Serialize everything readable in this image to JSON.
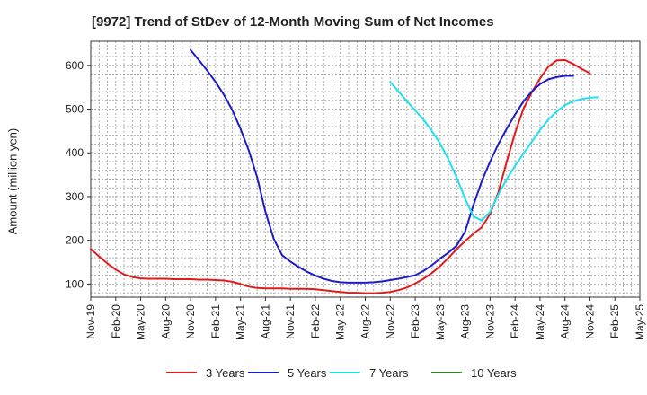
{
  "chart_data": {
    "type": "line",
    "title": "[9972]  Trend of StDev of 12-Month Moving Sum of Net Incomes",
    "ylabel": "Amount (million yen)",
    "xlabel": "",
    "ylim": [
      70,
      655
    ],
    "yticks": [
      100,
      200,
      300,
      400,
      500,
      600
    ],
    "x_categories": [
      "Nov-19",
      "Feb-20",
      "May-20",
      "Aug-20",
      "Nov-20",
      "Feb-21",
      "May-21",
      "Aug-21",
      "Nov-21",
      "Feb-22",
      "May-22",
      "Aug-22",
      "Nov-22",
      "Feb-23",
      "May-23",
      "Aug-23",
      "Nov-23",
      "Feb-24",
      "May-24",
      "Aug-24",
      "Nov-24",
      "Feb-25",
      "May-25"
    ],
    "grid": true,
    "legend_position": "bottom",
    "series": [
      {
        "name": "3 Years",
        "color": "#e31a1c",
        "start_index": 0,
        "values": [
          180,
          163,
          147,
          133,
          122,
          116,
          113,
          112,
          112,
          112,
          111,
          111,
          111,
          110,
          110,
          109,
          108,
          105,
          100,
          94,
          91,
          90,
          90,
          90,
          89,
          89,
          89,
          88,
          86,
          84,
          82,
          80,
          80,
          79,
          79,
          80,
          82,
          86,
          92,
          101,
          112,
          125,
          141,
          160,
          180,
          198,
          215,
          230,
          260,
          310,
          380,
          445,
          500,
          538,
          570,
          597,
          611,
          612,
          603,
          592,
          582
        ]
      },
      {
        "name": "5 Years",
        "color": "#1c1cc8",
        "start_index": 12,
        "values": [
          635,
          612,
          588,
          562,
          533,
          498,
          455,
          405,
          344,
          265,
          203,
          166,
          151,
          139,
          128,
          119,
          112,
          107,
          104,
          103,
          103,
          103,
          104,
          106,
          109,
          112,
          116,
          120,
          130,
          143,
          158,
          172,
          188,
          220,
          280,
          335,
          380,
          420,
          455,
          487,
          517,
          540,
          557,
          568,
          573,
          576,
          576
        ]
      },
      {
        "name": "7 Years",
        "color": "#1ee0ee",
        "start_index": 36,
        "values": [
          562,
          540,
          518,
          497,
          476,
          450,
          421,
          385,
          343,
          295,
          255,
          245,
          265,
          305,
          340,
          370,
          398,
          425,
          452,
          476,
          494,
          509,
          518,
          523,
          526,
          527
        ]
      },
      {
        "name": "10 Years",
        "color": "#2e8b2e",
        "start_index": 0,
        "values": []
      }
    ]
  }
}
